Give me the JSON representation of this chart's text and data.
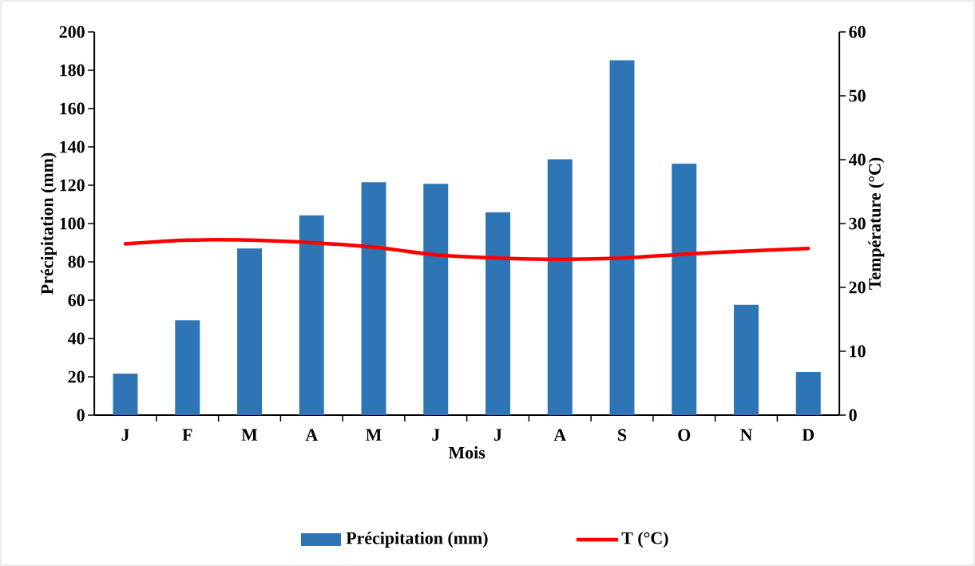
{
  "chart_data": {
    "type": "bar",
    "xlabel": "Mois",
    "ylabel": "Précipitation  (mm)",
    "y2label": "Température  (°C)",
    "categories": [
      "J",
      "F",
      "M",
      "A",
      "M",
      "J",
      "J",
      "A",
      "S",
      "O",
      "N",
      "D"
    ],
    "series": [
      {
        "name": "Précipitation (mm)",
        "color": "#2e75b6",
        "values": [
          21.7,
          49.5,
          87,
          104.3,
          121.6,
          120.7,
          105.8,
          133.5,
          185.2,
          131.3,
          57.6,
          22.5
        ]
      },
      {
        "name": "T (°C)",
        "type": "line",
        "axis": "y2",
        "color": "#ff0000",
        "values": [
          26.8,
          27.4,
          27.4,
          27.0,
          26.3,
          25.1,
          24.6,
          24.4,
          24.6,
          25.2,
          25.7,
          26.1
        ]
      }
    ],
    "ylim": [
      0,
      200
    ],
    "yticks": [
      0,
      20,
      40,
      60,
      80,
      100,
      120,
      140,
      160,
      180,
      200
    ],
    "y2lim": [
      0,
      60
    ],
    "y2ticks": [
      0,
      10,
      20,
      30,
      40,
      50,
      60
    ],
    "legend": "bottom"
  }
}
